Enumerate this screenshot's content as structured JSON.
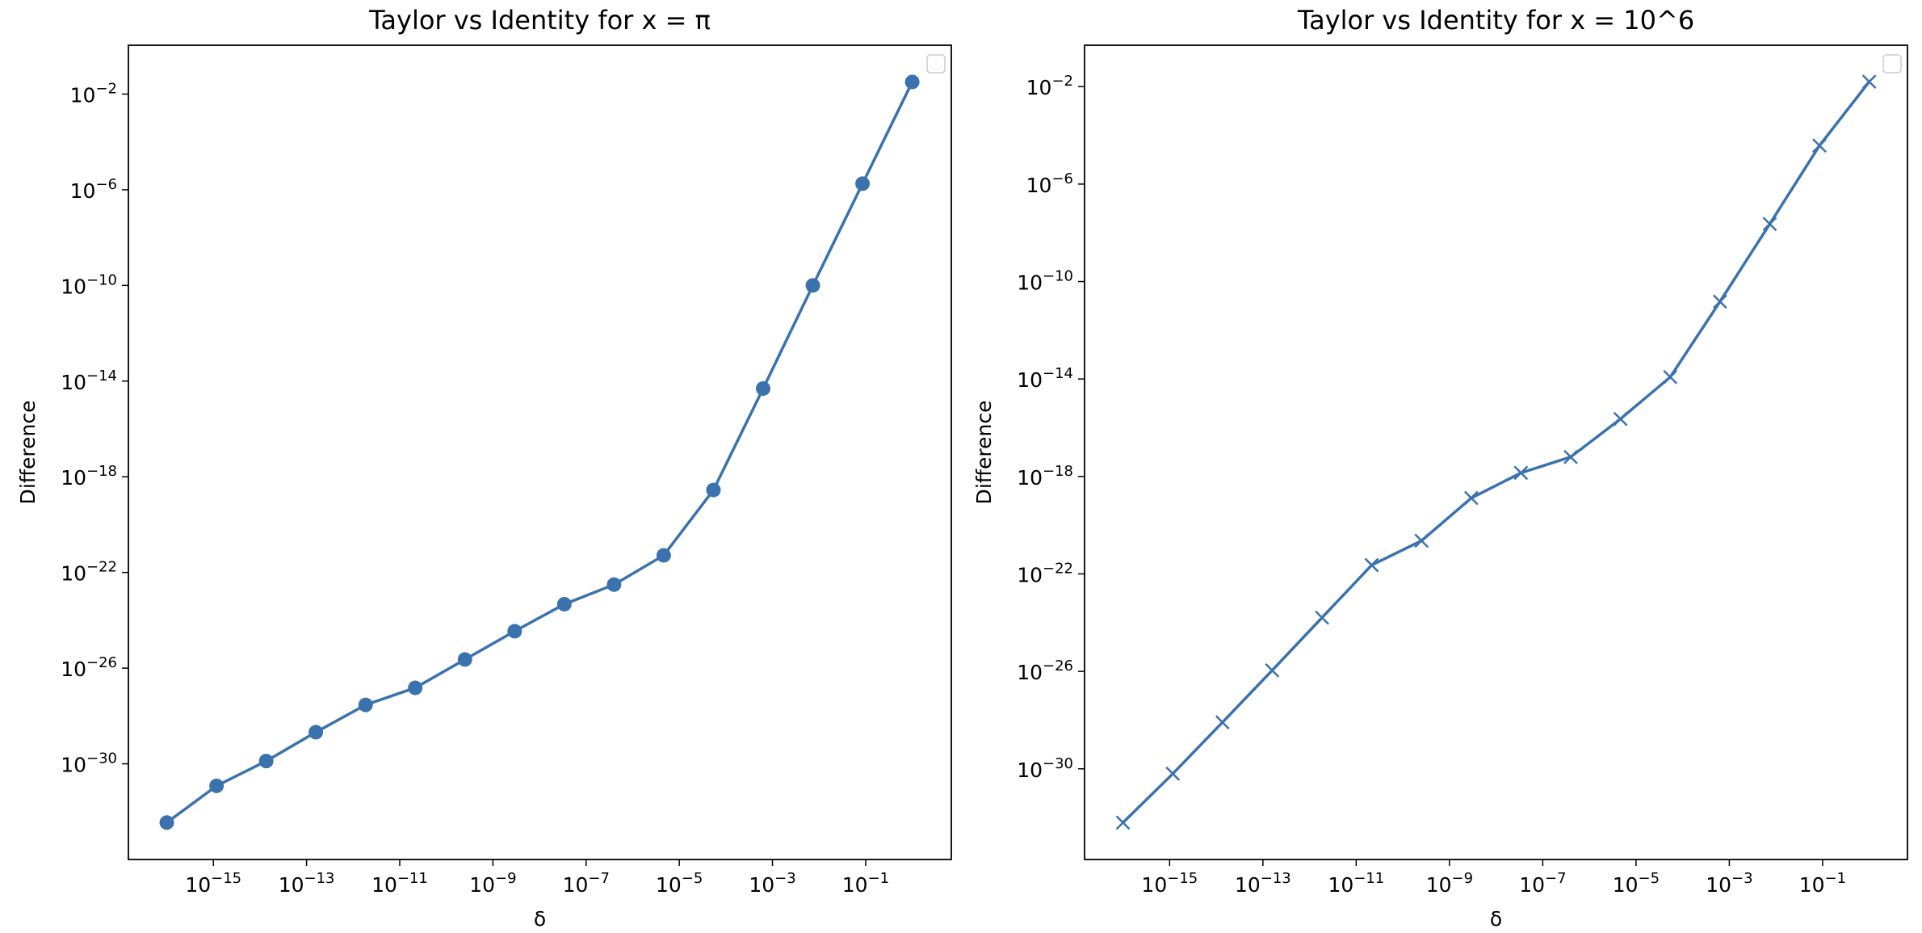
{
  "chart_data": [
    {
      "type": "line",
      "title": "Taylor vs Identity for x = π",
      "x_label": "δ",
      "y_label": "Difference",
      "xscale": "log",
      "yscale": "log",
      "marker": "o",
      "legend": "upper right",
      "x": [
        1e-16,
        1.17e-15,
        1.36e-14,
        1.58e-13,
        1.85e-12,
        2.15e-11,
        2.51e-10,
        2.93e-09,
        3.41e-08,
        3.98e-07,
        4.64e-06,
        5.41e-05,
        0.000631,
        0.00736,
        0.0858,
        1
      ],
      "series": [
        {
          "color": "#3a72ae",
          "values": [
            3.5e-33,
            1.2e-31,
            1.3e-30,
            2.1e-29,
            2.9e-28,
            1.5e-27,
            2.3e-26,
            3.5e-25,
            4.7e-24,
            3.1e-23,
            5.2e-22,
            2.8e-19,
            4.9e-15,
            1e-10,
            1.8e-06,
            0.032
          ]
        }
      ],
      "xlim": [
        1.5e-17,
        6.9
      ],
      "ylim": [
        1e-34,
        1.1
      ],
      "xticks": [
        {
          "value": 1e-15,
          "label": "10−15"
        },
        {
          "value": 1e-13,
          "label": "10−13"
        },
        {
          "value": 1e-11,
          "label": "10−11"
        },
        {
          "value": 1e-09,
          "label": "10−9"
        },
        {
          "value": 1e-07,
          "label": "10−7"
        },
        {
          "value": 1e-05,
          "label": "10−5"
        },
        {
          "value": 0.001,
          "label": "10−3"
        },
        {
          "value": 0.1,
          "label": "10−1"
        }
      ],
      "yticks": [
        {
          "value": 1e-30,
          "label": "10−30"
        },
        {
          "value": 1e-26,
          "label": "10−26"
        },
        {
          "value": 1e-22,
          "label": "10−22"
        },
        {
          "value": 1e-18,
          "label": "10−18"
        },
        {
          "value": 1e-14,
          "label": "10−14"
        },
        {
          "value": 1e-10,
          "label": "10−10"
        },
        {
          "value": 1e-06,
          "label": "10−6"
        },
        {
          "value": 0.01,
          "label": "10−2"
        }
      ]
    },
    {
      "type": "line",
      "title": "Taylor vs Identity for x = 10^6",
      "x_label": "δ",
      "y_label": "Difference",
      "xscale": "log",
      "yscale": "log",
      "marker": "x",
      "legend": "upper right",
      "x": [
        1e-16,
        1.17e-15,
        1.36e-14,
        1.58e-13,
        1.85e-12,
        2.15e-11,
        2.51e-10,
        2.93e-09,
        3.41e-08,
        3.98e-07,
        4.64e-06,
        5.41e-05,
        0.000631,
        0.00736,
        0.0858,
        1
      ],
      "series": [
        {
          "color": "#3a72ae",
          "values": [
            6.2e-33,
            6.3e-31,
            8.1e-29,
            1.1e-26,
            1.6e-24,
            2.3e-22,
            2.3e-21,
            1.3e-19,
            1.4e-18,
            6.3e-18,
            2.3e-16,
            1.2e-14,
            1.5e-11,
            2.3e-08,
            3.8e-05,
            0.016
          ]
        }
      ],
      "xlim": [
        1.5e-17,
        6.6
      ],
      "ylim": [
        1.9e-34,
        0.5
      ],
      "xticks": [
        {
          "value": 1e-15,
          "label": "10−15"
        },
        {
          "value": 1e-13,
          "label": "10−13"
        },
        {
          "value": 1e-11,
          "label": "10−11"
        },
        {
          "value": 1e-09,
          "label": "10−9"
        },
        {
          "value": 1e-07,
          "label": "10−7"
        },
        {
          "value": 1e-05,
          "label": "10−5"
        },
        {
          "value": 0.001,
          "label": "10−3"
        },
        {
          "value": 0.1,
          "label": "10−1"
        }
      ],
      "yticks": [
        {
          "value": 1e-30,
          "label": "10−30"
        },
        {
          "value": 1e-26,
          "label": "10−26"
        },
        {
          "value": 1e-22,
          "label": "10−22"
        },
        {
          "value": 1e-18,
          "label": "10−18"
        },
        {
          "value": 1e-14,
          "label": "10−14"
        },
        {
          "value": 1e-10,
          "label": "10−10"
        },
        {
          "value": 1e-06,
          "label": "10−6"
        },
        {
          "value": 0.01,
          "label": "10−2"
        }
      ]
    }
  ]
}
